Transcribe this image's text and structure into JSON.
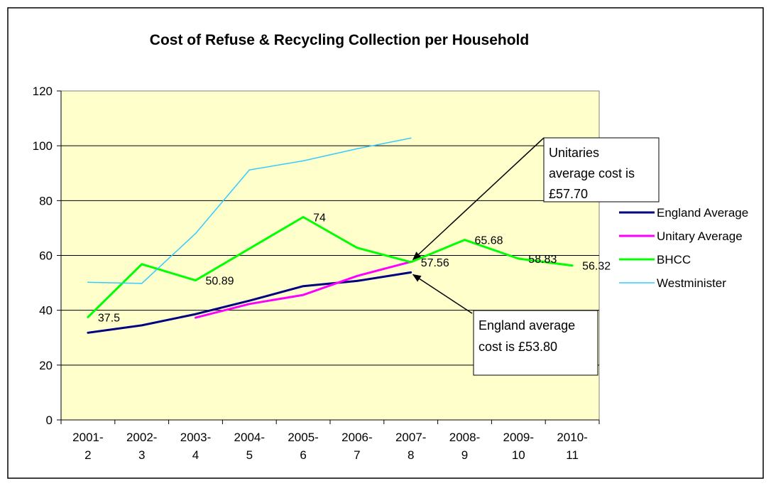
{
  "chart_data": {
    "type": "line",
    "title": "Cost of Refuse & Recycling Collection per Household",
    "xlabel": "",
    "ylabel": "",
    "categories": [
      [
        "2001-",
        "2"
      ],
      [
        "2002-",
        "3"
      ],
      [
        "2003-",
        "4"
      ],
      [
        "2004-",
        "5"
      ],
      [
        "2005-",
        "6"
      ],
      [
        "2006-",
        "7"
      ],
      [
        "2007-",
        "8"
      ],
      [
        "2008-",
        "9"
      ],
      [
        "2009-",
        "10"
      ],
      [
        "2010-",
        "11"
      ]
    ],
    "ylim": [
      0,
      120
    ],
    "yticks": [
      "0",
      "20",
      "40",
      "60",
      "80",
      "100",
      "120"
    ],
    "grid": true,
    "legend_position": "right",
    "plot_background": "#FFFFCC",
    "series": [
      {
        "name": "England Average",
        "color": "#000080",
        "values": [
          31.8,
          34.5,
          38.6,
          43.5,
          48.8,
          50.7,
          53.8,
          null,
          null,
          null
        ]
      },
      {
        "name": "Unitary Average",
        "color": "#FF00FF",
        "values": [
          null,
          null,
          37.3,
          42.3,
          45.6,
          52.5,
          57.7,
          null,
          null,
          null
        ]
      },
      {
        "name": "BHCC",
        "color": "#00FF00",
        "values": [
          37.5,
          56.8,
          50.89,
          62.5,
          74,
          62.8,
          57.56,
          65.68,
          58.83,
          56.32
        ]
      },
      {
        "name": "Westminister",
        "color": "#33CCFF",
        "values": [
          50.2,
          49.8,
          68,
          91.2,
          94.5,
          98.9,
          102.8,
          null,
          null,
          null
        ]
      }
    ],
    "data_labels": [
      {
        "series": 2,
        "index": 0,
        "text": "37.5"
      },
      {
        "series": 2,
        "index": 2,
        "text": "50.89"
      },
      {
        "series": 2,
        "index": 4,
        "text": "74"
      },
      {
        "series": 2,
        "index": 6,
        "text": "57.56"
      },
      {
        "series": 2,
        "index": 7,
        "text": "65.68"
      },
      {
        "series": 2,
        "index": 8,
        "text": "58.83"
      },
      {
        "series": 2,
        "index": 9,
        "text": "56.32"
      }
    ],
    "annotations": [
      {
        "lines": [
          "Unitaries",
          "average cost is",
          "£57.70"
        ],
        "target_series": 1,
        "target_index": 6
      },
      {
        "lines": [
          "England average",
          "cost is £53.80"
        ],
        "target_series": 0,
        "target_index": 6
      }
    ]
  }
}
